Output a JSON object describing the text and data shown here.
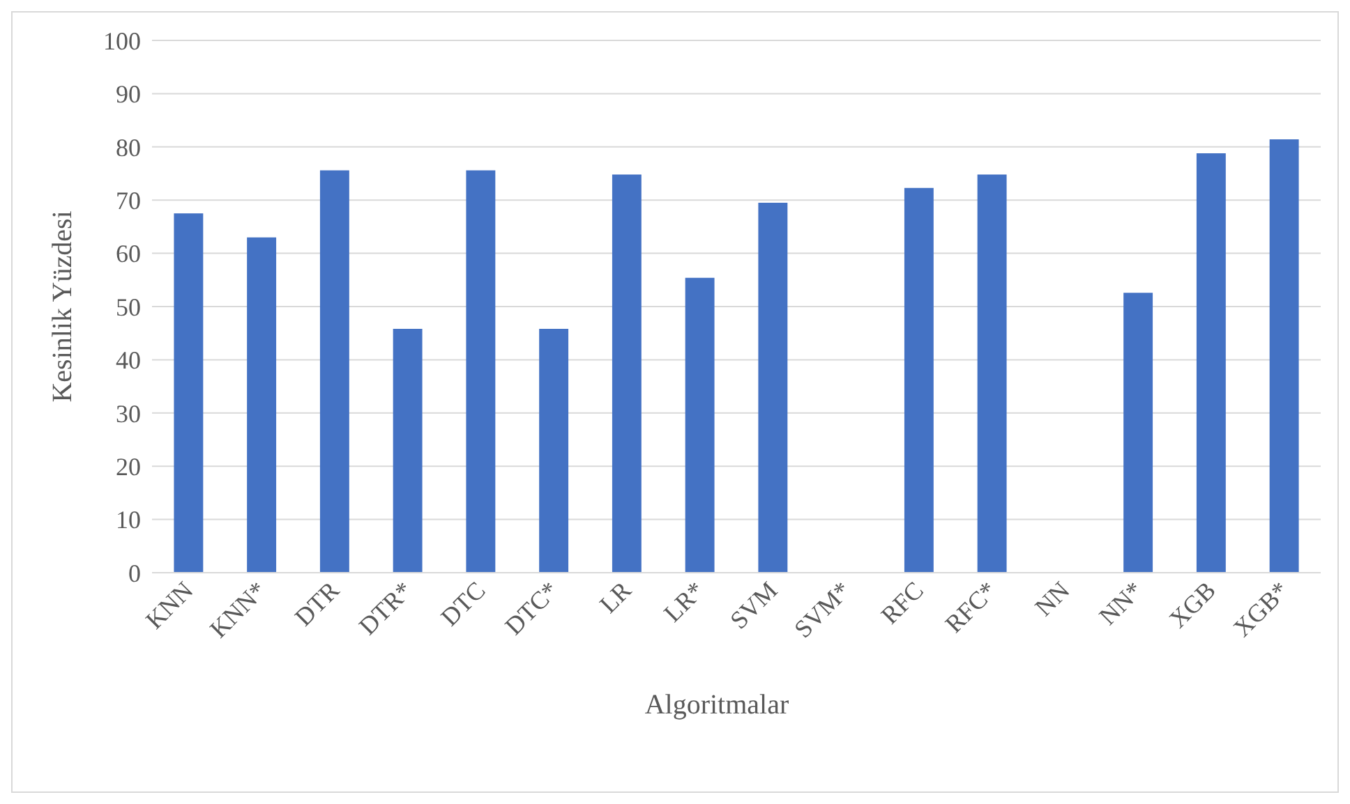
{
  "chart_data": {
    "type": "bar",
    "xlabel": "Algoritmalar",
    "ylabel": "Kesinlik Yüzdesi",
    "categories": [
      "KNN",
      "KNN*",
      "DTR",
      "DTR*",
      "DTC",
      "DTC*",
      "LR",
      "LR*",
      "SVM",
      "SVM*",
      "RFC",
      "RFC*",
      "NN",
      "NN*",
      "XGB",
      "XGB*"
    ],
    "values": [
      67.5,
      63.0,
      75.6,
      45.8,
      75.6,
      45.8,
      74.8,
      55.4,
      69.5,
      null,
      72.3,
      74.8,
      null,
      52.6,
      78.8,
      81.4
    ],
    "color": "#4472c4",
    "ylim": [
      0,
      100
    ],
    "yticks": [
      0,
      10,
      20,
      30,
      40,
      50,
      60,
      70,
      80,
      90,
      100
    ],
    "grid": "y",
    "legend": false
  }
}
